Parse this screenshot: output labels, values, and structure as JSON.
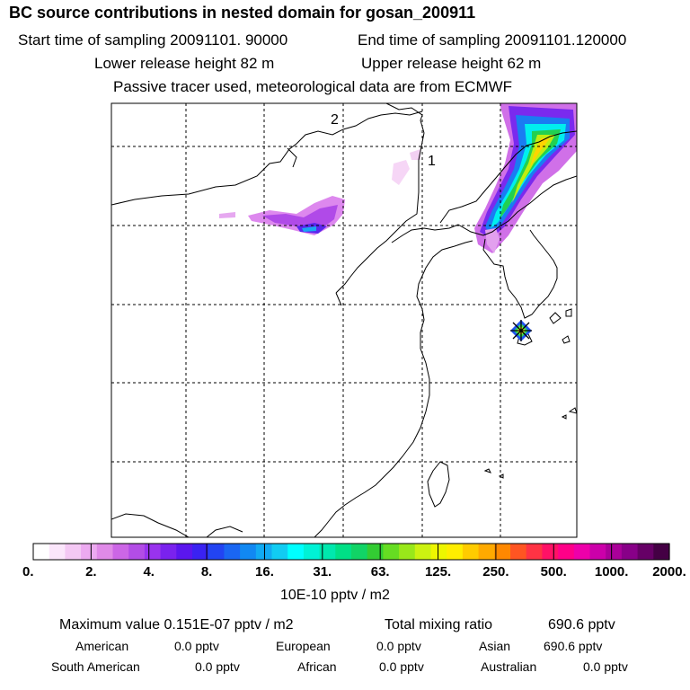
{
  "title": "BC  source contributions in nested domain for gosan_200911",
  "sampling": {
    "start": "Start time of sampling 20091101. 90000",
    "end": "End time of sampling 20091101.120000"
  },
  "release": {
    "lower": "Lower release height   82 m",
    "upper": "Upper release height   62 m"
  },
  "info": "Passive tracer used, meteorological data are from ECMWF",
  "map": {
    "labels": [
      "2",
      "1"
    ],
    "receptor_marker": "receptor-star-icon"
  },
  "colorbar": {
    "colors": [
      "#ffffff",
      "#fbe6fb",
      "#f4c8f4",
      "#ecaaf0",
      "#e08ae8",
      "#cc66e6",
      "#b34de6",
      "#9933ee",
      "#7a22ee",
      "#5b16ee",
      "#3a22f2",
      "#2244f2",
      "#1a66f2",
      "#1188f2",
      "#11aaf2",
      "#11ccf2",
      "#00ffff",
      "#00f2d6",
      "#00e8ae",
      "#00e086",
      "#11d466",
      "#33cc33",
      "#66dd22",
      "#99e81a",
      "#ccf211",
      "#eef600",
      "#ffee00",
      "#ffcc00",
      "#ffaa00",
      "#ff8800",
      "#ff5522",
      "#ff3344",
      "#ff1166",
      "#ff0088",
      "#ee00aa",
      "#cc00aa",
      "#aa0099",
      "#880088",
      "#660066",
      "#440044"
    ],
    "tick_labels": [
      "0.",
      "2.",
      "4.",
      "8.",
      "16.",
      "31.",
      "63.",
      "125.",
      "250.",
      "500.",
      "1000.",
      "2000."
    ],
    "unit": "10E-10 pptv / m2"
  },
  "summary": {
    "maximum": "Maximum value  0.151E-07 pptv / m2",
    "total_label": "Total mixing ratio",
    "total_value": "690.6 pptv"
  },
  "regions": [
    {
      "name": "American",
      "value": "0.0 pptv"
    },
    {
      "name": "European",
      "value": "0.0 pptv"
    },
    {
      "name": "Asian",
      "value": "690.6 pptv"
    },
    {
      "name": "South American",
      "value": "0.0 pptv"
    },
    {
      "name": "African",
      "value": "0.0 pptv"
    },
    {
      "name": "Australian",
      "value": "0.0 pptv"
    }
  ]
}
